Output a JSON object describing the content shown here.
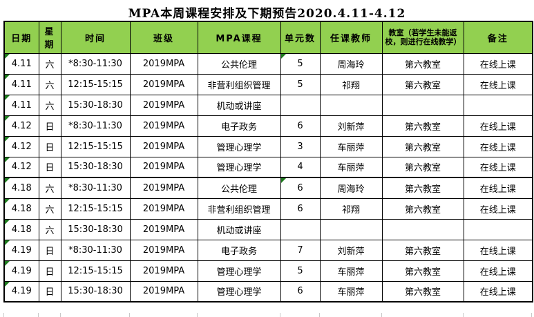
{
  "title": "MPA本周课程安排及下期预告2020.4.11-4.12",
  "colors": {
    "header_bg": "#92D050",
    "border": "#000000",
    "error_triangle": "#1E7B1E",
    "gridline_stub": "#C9C9C9"
  },
  "icons": {
    "cell_error_triangle": "green corner triangle (spreadsheet error indicator)"
  },
  "table": {
    "headers": [
      "日期",
      "星期",
      "时间",
      "班级",
      "MPA课程",
      "单元数",
      "任课教师",
      "教室（若学生未能返校，则进行在线教学）",
      "备注"
    ],
    "rows": [
      {
        "date": "4.11",
        "weekday": "六",
        "time": "*8:30-11:30",
        "class_name": "2019MPA",
        "course": "公共伦理",
        "units": "5",
        "teacher": "周海玲",
        "room": "第六教室",
        "note": "在线上课",
        "date_flag": true,
        "units_flag": true,
        "section_start": false
      },
      {
        "date": "4.11",
        "weekday": "六",
        "time": "12:15-15:15",
        "class_name": "2019MPA",
        "course": "非营利组织管理",
        "units": "5",
        "teacher": "祁翔",
        "room": "第六教室",
        "note": "在线上课",
        "date_flag": true,
        "units_flag": false,
        "section_start": false
      },
      {
        "date": "4.11",
        "weekday": "六",
        "time": "15:30-18:30",
        "class_name": "2019MPA",
        "course": "机动或讲座",
        "units": "",
        "teacher": "",
        "room": "",
        "note": "",
        "date_flag": true,
        "units_flag": false,
        "section_start": false
      },
      {
        "date": "4.12",
        "weekday": "日",
        "time": "*8:30-11:30",
        "class_name": "2019MPA",
        "course": "电子政务",
        "units": "6",
        "teacher": "刘新萍",
        "room": "第六教室",
        "note": "在线上课",
        "date_flag": true,
        "units_flag": false,
        "section_start": false
      },
      {
        "date": "4.12",
        "weekday": "日",
        "time": "12:15-15:15",
        "class_name": "2019MPA",
        "course": "管理心理学",
        "units": "3",
        "teacher": "车丽萍",
        "room": "第六教室",
        "note": "在线上课",
        "date_flag": true,
        "units_flag": false,
        "section_start": false
      },
      {
        "date": "4.12",
        "weekday": "日",
        "time": "15:30-18:30",
        "class_name": "2019MPA",
        "course": "管理心理学",
        "units": "4",
        "teacher": "车丽萍",
        "room": "第六教室",
        "note": "在线上课",
        "date_flag": true,
        "units_flag": false,
        "section_start": false
      },
      {
        "date": "4.18",
        "weekday": "六",
        "time": "*8:30-11:30",
        "class_name": "2019MPA",
        "course": "公共伦理",
        "units": "6",
        "teacher": "周海玲",
        "room": "第六教室",
        "note": "在线上课",
        "date_flag": true,
        "units_flag": true,
        "section_start": true
      },
      {
        "date": "4.18",
        "weekday": "六",
        "time": "12:15-15:15",
        "class_name": "2019MPA",
        "course": "非营利组织管理",
        "units": "6",
        "teacher": "祁翔",
        "room": "第六教室",
        "note": "在线上课",
        "date_flag": true,
        "units_flag": false,
        "section_start": false
      },
      {
        "date": "4.18",
        "weekday": "六",
        "time": "15:30-18:30",
        "class_name": "2019MPA",
        "course": "机动或讲座",
        "units": "",
        "teacher": "",
        "room": "",
        "note": "",
        "date_flag": true,
        "units_flag": false,
        "section_start": false
      },
      {
        "date": "4.19",
        "weekday": "日",
        "time": "*8:30-11:30",
        "class_name": "2019MPA",
        "course": "电子政务",
        "units": "7",
        "teacher": "刘新萍",
        "room": "第六教室",
        "note": "在线上课",
        "date_flag": true,
        "units_flag": false,
        "section_start": false
      },
      {
        "date": "4.19",
        "weekday": "日",
        "time": "12:15-15:15",
        "class_name": "2019MPA",
        "course": "管理心理学",
        "units": "5",
        "teacher": "车丽萍",
        "room": "第六教室",
        "note": "在线上课",
        "date_flag": true,
        "units_flag": false,
        "section_start": false
      },
      {
        "date": "4.19",
        "weekday": "日",
        "time": "15:30-18:30",
        "class_name": "2019MPA",
        "course": "管理心理学",
        "units": "6",
        "teacher": "车丽萍",
        "room": "第六教室",
        "note": "在线上课",
        "date_flag": true,
        "units_flag": false,
        "section_start": false
      }
    ]
  }
}
